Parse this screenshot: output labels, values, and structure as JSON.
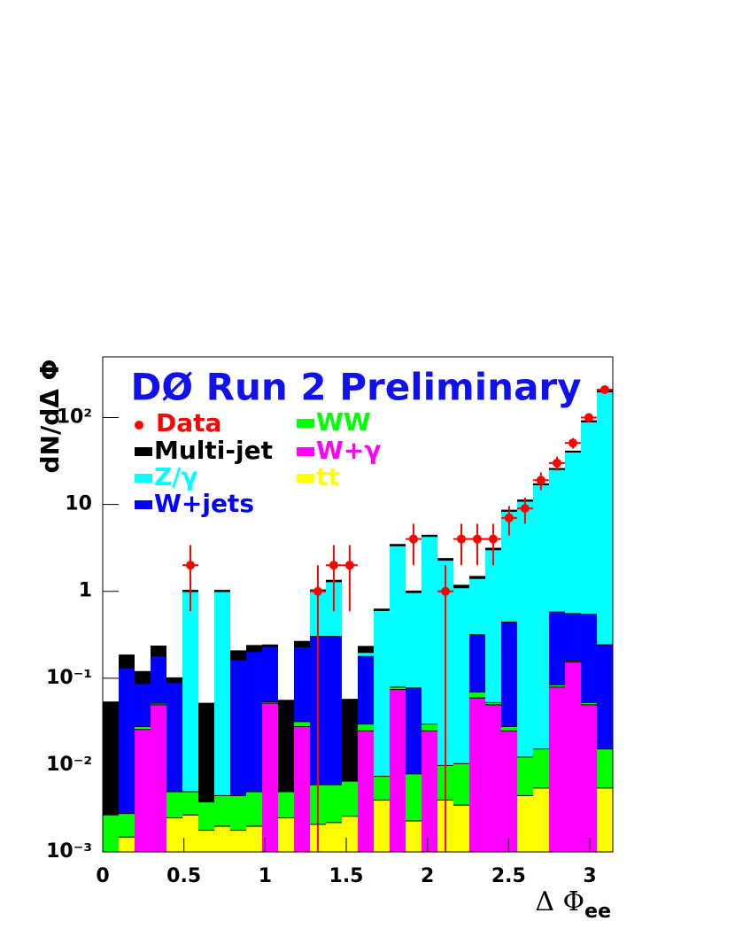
{
  "chart_data": {
    "type": "stacked_histogram",
    "title": "DØ Run 2 Preliminary",
    "y_label": "dN/dΔ Φ",
    "x_label": "Δ Φ",
    "x_label_sub": "ee",
    "xlim": [
      0,
      3.1416
    ],
    "xticks": [
      0,
      0.5,
      1,
      1.5,
      2,
      2.5,
      3
    ],
    "ylim": [
      0.001,
      500
    ],
    "log_y": true,
    "yticks": [
      {
        "value": 0.001,
        "label": "10⁻³"
      },
      {
        "value": 0.01,
        "label": "10⁻²"
      },
      {
        "value": 0.1,
        "label": "10⁻¹"
      },
      1,
      10,
      {
        "value": 100,
        "label": "10²"
      }
    ],
    "bins": [
      0,
      0.0982,
      0.1963,
      0.2945,
      0.3927,
      0.4909,
      0.589,
      0.6872,
      0.7854,
      0.8836,
      0.9817,
      1.0799,
      1.1781,
      1.2763,
      1.3744,
      1.4726,
      1.5708,
      1.669,
      1.7671,
      1.8653,
      1.9635,
      2.0617,
      2.1598,
      2.258,
      2.3562,
      2.4544,
      2.5525,
      2.6507,
      2.7489,
      2.8471,
      2.9452,
      3.0434,
      3.1416
    ],
    "series": [
      {
        "name": "tt",
        "color": "#ffff00",
        "values": [
          0,
          0.0015,
          0,
          0,
          0.0025,
          0.0027,
          0.0018,
          0.002,
          0.0018,
          0.002,
          0,
          0.0025,
          0,
          0.0021,
          0.0022,
          0.0026,
          0,
          0.004,
          0,
          0.0023,
          0,
          0.004,
          0.0035,
          0,
          0,
          0,
          0.0045,
          0.0055,
          0,
          0,
          0,
          0.0055
        ]
      },
      {
        "name": "W+γ",
        "color": "#ff00ff",
        "values": [
          0,
          0,
          0.026,
          0.05,
          0,
          0,
          0,
          0,
          0,
          0,
          0.052,
          0,
          0.028,
          0,
          0,
          0,
          0.025,
          0,
          0.075,
          0,
          0.025,
          0,
          0,
          0.06,
          0.05,
          0.025,
          0,
          0,
          0.08,
          0.155,
          0.05,
          0
        ]
      },
      {
        "name": "WW",
        "color": "#00ff00",
        "values": [
          0.0027,
          0.0013,
          0.002,
          0.002,
          0.0025,
          0.0023,
          0.002,
          0.0025,
          0.0027,
          0.003,
          0.002,
          0.0025,
          0.004,
          0.0039,
          0.0038,
          0.004,
          0.005,
          0.0035,
          0.005,
          0.0057,
          0.005,
          0.006,
          0.007,
          0.01,
          0.003,
          0.003,
          0.008,
          0.01,
          0.005,
          0.005,
          0.003,
          0.01
        ]
      },
      {
        "name": "W+jets",
        "color": "#0000ff",
        "values": [
          0,
          0.13,
          0.06,
          0.13,
          0.085,
          0,
          0,
          0,
          0.16,
          0.2,
          0.18,
          0,
          0.2,
          0.3,
          0.3,
          0,
          0.15,
          0,
          0,
          0.07,
          0,
          0,
          0,
          0.25,
          0,
          0.42,
          0,
          0,
          0.5,
          0.4,
          0.5,
          0.23
        ]
      },
      {
        "name": "Z/γ",
        "color": "#00ffff",
        "values": [
          0,
          0,
          0,
          0,
          0,
          1.0,
          0,
          1.0,
          0,
          0,
          0,
          0,
          0,
          0.7,
          1.0,
          0,
          0.02,
          0.6,
          3.3,
          0.9,
          4.3,
          2.3,
          1.1,
          1.1,
          3.0,
          8.0,
          11,
          17,
          25,
          40,
          90,
          200
        ]
      },
      {
        "name": "Multi-jet",
        "color": "#000000",
        "values": [
          0.05,
          0.05,
          0.03,
          0.05,
          0.01,
          0.01,
          0.047,
          0.01,
          0.04,
          0.03,
          0.005,
          0.05,
          0.03,
          0.02,
          0.02,
          0.05,
          0.03,
          0.01,
          0.05,
          0.02,
          0.05,
          0.05,
          0.05,
          0.05,
          0.05,
          0.05,
          0.1,
          0.1,
          0.1,
          0.1,
          0.1,
          0.1
        ]
      }
    ],
    "data": {
      "name": "Data",
      "color": "#ff0000",
      "x": [
        0.54,
        1.325,
        1.423,
        1.521,
        1.914,
        2.111,
        2.209,
        2.307,
        2.405,
        2.503,
        2.601,
        2.699,
        2.798,
        2.896,
        2.994,
        3.092
      ],
      "values": [
        2,
        1,
        2,
        2,
        4,
        1,
        4,
        4,
        4,
        7,
        9,
        19,
        30,
        51,
        100,
        210
      ],
      "errors": [
        1.41,
        1,
        1.41,
        1.41,
        2,
        1,
        2,
        2,
        2,
        2.6,
        3,
        4.4,
        5.5,
        7.1,
        10,
        14.5
      ]
    }
  }
}
